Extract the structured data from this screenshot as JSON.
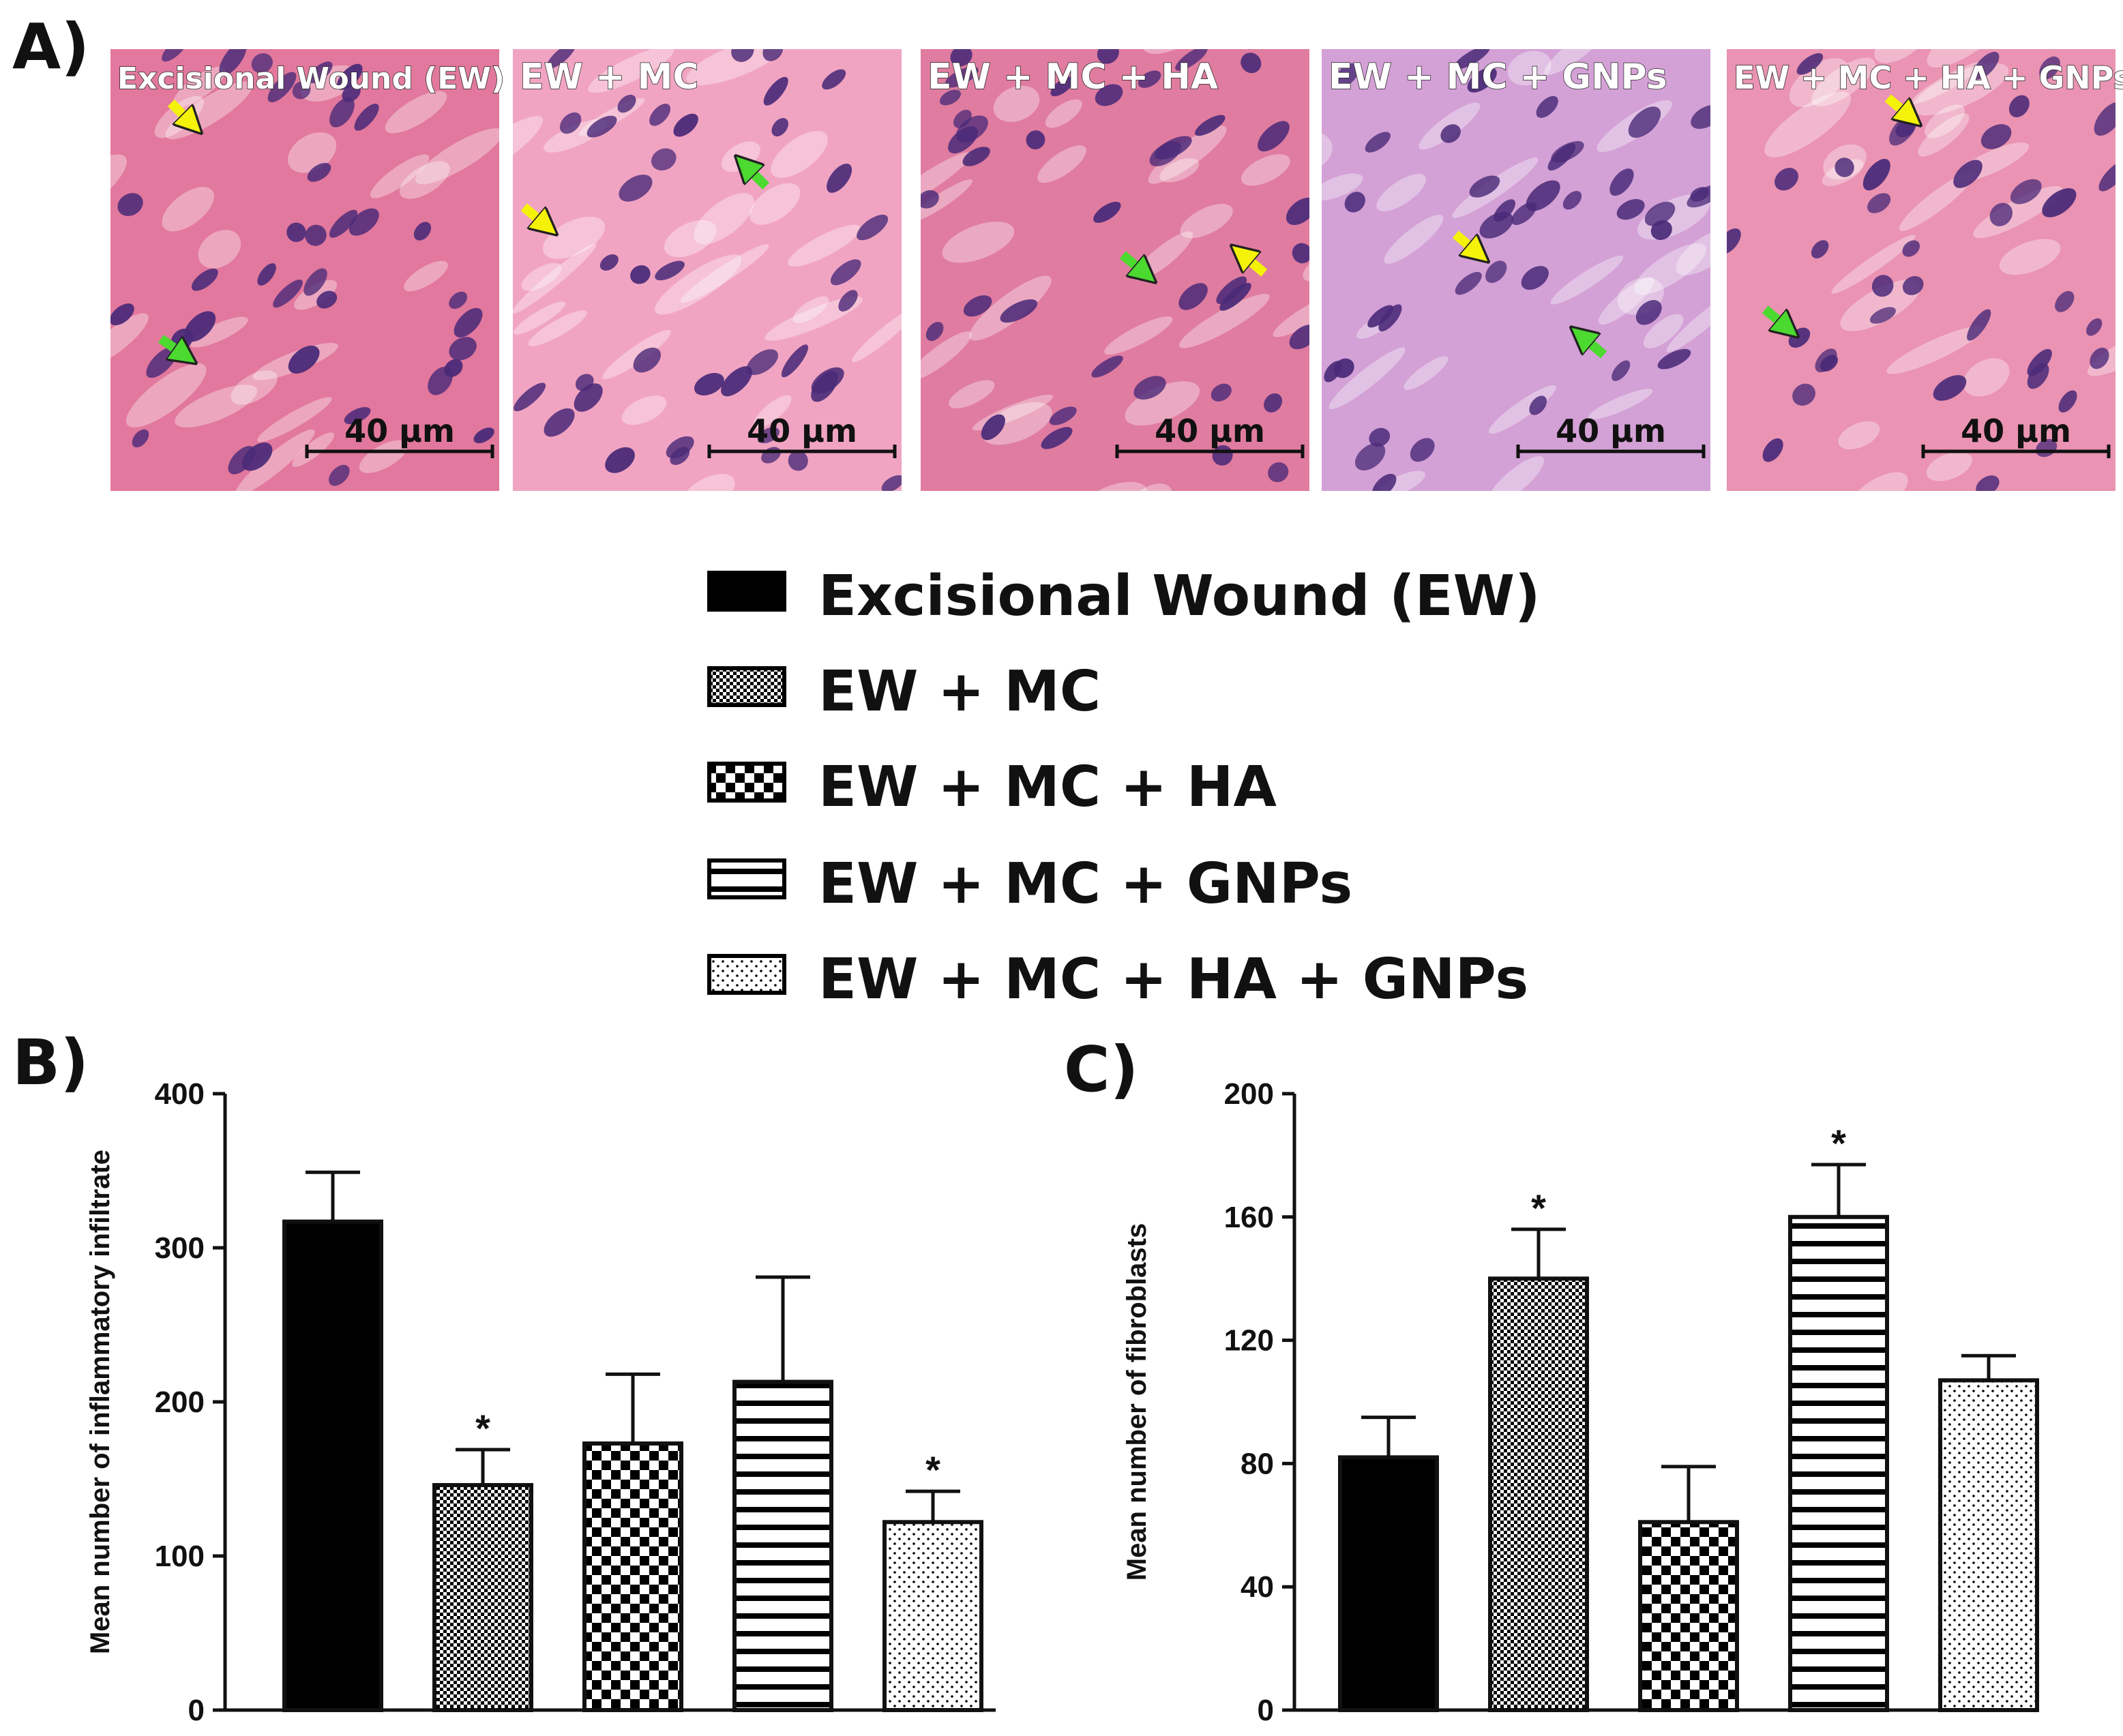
{
  "panels": {
    "A": "A)",
    "B": "B)",
    "C": "C)"
  },
  "micrographs": [
    {
      "label": "Excisional Wound (EW)",
      "scale": "40 μm",
      "stain": "#e2789d"
    },
    {
      "label": "EW + MC",
      "scale": "40 μm",
      "stain": "#f1a4c2"
    },
    {
      "label": "EW + MC + HA",
      "scale": "40 μm",
      "stain": "#e07ca0"
    },
    {
      "label": "EW + MC + GNPs",
      "scale": "40 μm",
      "stain": "#d3a1d6"
    },
    {
      "label": "EW + MC + HA + GNPs",
      "scale": "40 μm",
      "stain": "#ea93b2"
    }
  ],
  "legend": [
    {
      "label": "Excisional Wound (EW)",
      "pattern": "solid"
    },
    {
      "label": "EW + MC",
      "pattern": "fine-check"
    },
    {
      "label": "EW + MC + HA",
      "pattern": "checker"
    },
    {
      "label": "EW + MC + GNPs",
      "pattern": "horizontal-lines"
    },
    {
      "label": "EW + MC + HA + GNPs",
      "pattern": "dots"
    }
  ],
  "chart_data": [
    {
      "panel": "B",
      "type": "bar",
      "categories": [
        "Excisional Wound (EW)",
        "EW + MC",
        "EW + MC + HA",
        "EW + MC + GNPs",
        "EW + MC + HA + GNPs"
      ],
      "values": [
        317,
        146,
        173,
        213,
        122
      ],
      "errors": [
        32,
        23,
        45,
        68,
        20
      ],
      "significance": [
        "",
        "*",
        "",
        "",
        "*"
      ],
      "ylabel": "Mean number of inflammatory infiltrate",
      "ylim": [
        0,
        400
      ],
      "yticks": [
        0,
        100,
        200,
        300,
        400
      ],
      "grid": false
    },
    {
      "panel": "C",
      "type": "bar",
      "categories": [
        "Excisional Wound (EW)",
        "EW + MC",
        "EW + MC + HA",
        "EW + MC + GNPs",
        "EW + MC + HA + GNPs"
      ],
      "values": [
        82,
        140,
        61,
        160,
        107
      ],
      "errors": [
        13,
        16,
        18,
        17,
        8
      ],
      "significance": [
        "",
        "*",
        "",
        "*",
        ""
      ],
      "ylabel": "Mean number of fibroblasts",
      "ylim": [
        0,
        200
      ],
      "yticks": [
        0,
        40,
        80,
        120,
        160,
        200
      ],
      "grid": false
    }
  ],
  "colors": {
    "bar_fill_solid": "#000000",
    "arrow_yellow": "#f5f20a",
    "arrow_green": "#4cd930",
    "nucleus": "#4a2a78"
  }
}
